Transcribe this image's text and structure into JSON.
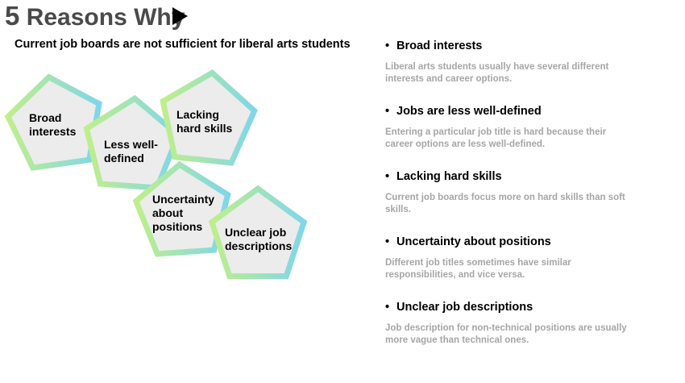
{
  "header": {
    "title_number": "5",
    "title_text": "Reasons Why",
    "subtitle": "Current job boards are not sufficient for liberal arts students"
  },
  "colors": {
    "gradient_start": "#bfef8a",
    "gradient_end": "#80d6ea",
    "pentagon_fill": "#ececec",
    "title": "#4a4a4a",
    "description": "#a6a6a6"
  },
  "pentagons": [
    {
      "lines": [
        "Broad",
        "interests"
      ]
    },
    {
      "lines": [
        "Less well-",
        "defined"
      ]
    },
    {
      "lines": [
        "Lacking",
        "hard skills"
      ]
    },
    {
      "lines": [
        "Uncertainty",
        "about",
        "positions"
      ]
    },
    {
      "lines": [
        "Unclear job",
        "descriptions"
      ]
    }
  ],
  "reasons": [
    {
      "bullet": "•",
      "title": "Broad interests",
      "description": "Liberal arts students usually have several different interests and career options."
    },
    {
      "bullet": "•",
      "title": "Jobs are less well-defined",
      "description": "Entering a particular job title is hard because their career options are less well-defined."
    },
    {
      "bullet": "•",
      "title": "Lacking hard skills",
      "description": "Current job boards focus more on hard skills than soft skills."
    },
    {
      "bullet": "•",
      "title": "Uncertainty about positions",
      "description": "Different job titles sometimes have similar responsibilities, and vice versa."
    },
    {
      "bullet": "•",
      "title": "Unclear job descriptions",
      "description": "Job description for non-technical positions are usually more vague than technical ones."
    }
  ]
}
